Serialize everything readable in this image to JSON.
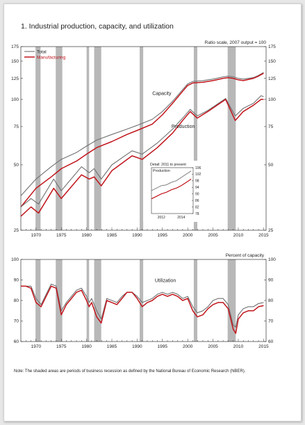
{
  "figure": {
    "title": "1.  Industrial production, capacity, and utilization",
    "note": "Note: The shaded areas are periods of business recession as defined by the National Bureau of Economic Research (NBER)."
  },
  "colors": {
    "total": "#707070",
    "manufacturing": "#c0141b",
    "recession": "#b8b8b8",
    "axis": "#333333"
  },
  "chart_data": [
    {
      "type": "line",
      "name": "production-capacity",
      "scale": "log",
      "scale_label": "Ratio scale, 2007 output = 100",
      "ylim": [
        25,
        175
      ],
      "xlim": [
        1967,
        2015.5
      ],
      "yticks": [
        25,
        50,
        75,
        100,
        125,
        150,
        175
      ],
      "xticks": [
        1970,
        1975,
        1980,
        1985,
        1990,
        1995,
        2000,
        2005,
        2010,
        2015
      ],
      "legend": {
        "position": "top-left",
        "entries": [
          "Total",
          "Manufacturing"
        ]
      },
      "annotations": [
        "Capacity",
        "Production"
      ],
      "recessions": [
        [
          1969.9,
          1970.9
        ],
        [
          1973.9,
          1975.2
        ],
        [
          1980.0,
          1980.5
        ],
        [
          1981.5,
          1982.9
        ],
        [
          1990.5,
          1991.2
        ],
        [
          2001.2,
          2001.9
        ],
        [
          2007.9,
          2009.5
        ]
      ],
      "series": [
        {
          "name": "Total",
          "measure": "Capacity",
          "x": [
            1967,
            1970,
            1973,
            1975,
            1978,
            1980,
            1982,
            1985,
            1988,
            1990,
            1993,
            1995,
            1997,
            1999,
            2000,
            2001,
            2003,
            2005,
            2007,
            2008,
            2009,
            2010,
            2011,
            2013,
            2014,
            2015
          ],
          "values": [
            36,
            43,
            49,
            53,
            57,
            61,
            65,
            69,
            73,
            76,
            81,
            88,
            98,
            111,
            118,
            121,
            122,
            124,
            127,
            128,
            127,
            125,
            124,
            126,
            129,
            133
          ]
        },
        {
          "name": "Manufacturing",
          "measure": "Capacity",
          "x": [
            1967,
            1970,
            1973,
            1975,
            1978,
            1980,
            1982,
            1985,
            1988,
            1990,
            1993,
            1995,
            1997,
            1999,
            2000,
            2001,
            2003,
            2005,
            2007,
            2008,
            2009,
            2010,
            2011,
            2013,
            2014,
            2015
          ],
          "values": [
            32,
            39,
            44,
            48,
            52,
            56,
            60,
            64,
            69,
            72,
            77,
            85,
            96,
            109,
            116,
            119,
            120,
            122,
            125,
            126,
            125,
            123,
            122,
            125,
            128,
            132
          ]
        },
        {
          "name": "Total",
          "measure": "Production",
          "x": [
            1967,
            1969,
            1970.5,
            1973.5,
            1975,
            1979,
            1980.5,
            1981.5,
            1982.9,
            1985,
            1989,
            1991,
            1994,
            1997,
            1999,
            2000.5,
            2001.9,
            2004,
            2007.5,
            2009.4,
            2011,
            2013,
            2014.5,
            2015
          ],
          "values": [
            32,
            35,
            33,
            43,
            38,
            49,
            46,
            48,
            43,
            50,
            58,
            56,
            63,
            73,
            82,
            90,
            84,
            89,
            101,
            84,
            91,
            96,
            104,
            103
          ]
        },
        {
          "name": "Manufacturing",
          "measure": "Production",
          "x": [
            1967,
            1969,
            1970.5,
            1973.5,
            1975,
            1979,
            1980.5,
            1981.5,
            1982.9,
            1985,
            1989,
            1991,
            1994,
            1997,
            1999,
            2000.5,
            2001.9,
            2004,
            2007.5,
            2009.4,
            2011,
            2013,
            2014.5,
            2015
          ],
          "values": [
            29,
            32,
            30,
            39,
            35,
            45,
            43,
            44,
            40,
            47,
            55,
            53,
            60,
            70,
            80,
            88,
            82,
            88,
            100,
            80,
            88,
            94,
            100,
            100
          ]
        }
      ],
      "inset": {
        "title": "Detail: 2011 to present",
        "label": "Production",
        "xlim": [
          2011,
          2015.2
        ],
        "ylim": [
          78,
          106
        ],
        "yticks": [
          78,
          82,
          86,
          90,
          94,
          98,
          102,
          106
        ],
        "xticks": [
          2012,
          2014
        ],
        "series": [
          {
            "name": "Total",
            "x": [
              2011,
              2011.5,
              2012,
              2012.5,
              2013,
              2013.5,
              2014,
              2014.5,
              2015
            ],
            "values": [
              92,
              93.5,
              95,
              95.5,
              97,
              98,
              100,
              102,
              104
            ]
          },
          {
            "name": "Manufacturing",
            "x": [
              2011,
              2011.5,
              2012,
              2012.5,
              2013,
              2013.5,
              2014,
              2014.5,
              2015
            ],
            "values": [
              87,
              88.5,
              90,
              91,
              92.5,
              93.5,
              95,
              97,
              99
            ]
          }
        ]
      }
    },
    {
      "type": "line",
      "name": "utilization",
      "scale_label": "Percent of capacity",
      "annotations": [
        "Utilization"
      ],
      "ylim": [
        60,
        100
      ],
      "xlim": [
        1967,
        2015.5
      ],
      "yticks": [
        60,
        70,
        80,
        90,
        100
      ],
      "xticks": [
        1970,
        1975,
        1980,
        1985,
        1990,
        1995,
        2000,
        2005,
        2010,
        2015
      ],
      "series": [
        {
          "name": "Total",
          "x": [
            1967,
            1968,
            1969,
            1970,
            1971,
            1972,
            1973,
            1974,
            1975,
            1976,
            1977,
            1978,
            1979,
            1980,
            1980.5,
            1981,
            1982,
            1982.9,
            1984,
            1985,
            1986,
            1987,
            1988,
            1989,
            1990,
            1991,
            1992,
            1993,
            1994,
            1995,
            1996,
            1997,
            1998,
            1999,
            2000,
            2001,
            2001.9,
            2003,
            2004,
            2005,
            2006,
            2007,
            2008,
            2009,
            2009.5,
            2010,
            2011,
            2012,
            2013,
            2014,
            2015
          ],
          "values": [
            87,
            87,
            87,
            81,
            78,
            83,
            88,
            87,
            75,
            79,
            82,
            85,
            86,
            82,
            79,
            81,
            75,
            71,
            81,
            80,
            79,
            82,
            84,
            84,
            82,
            79,
            80,
            81,
            83,
            84,
            83,
            84,
            83,
            81,
            82,
            77,
            74,
            75,
            77,
            80,
            81,
            81,
            78,
            68,
            67,
            73,
            76,
            77,
            77,
            78.5,
            79
          ]
        },
        {
          "name": "Manufacturing",
          "x": [
            1967,
            1968,
            1969,
            1970,
            1971,
            1972,
            1973,
            1974,
            1975,
            1976,
            1977,
            1978,
            1979,
            1980,
            1980.5,
            1981,
            1982,
            1982.9,
            1984,
            1985,
            1986,
            1987,
            1988,
            1989,
            1990,
            1991,
            1992,
            1993,
            1994,
            1995,
            1996,
            1997,
            1998,
            1999,
            2000,
            2001,
            2001.9,
            2003,
            2004,
            2005,
            2006,
            2007,
            2008,
            2009,
            2009.5,
            2010,
            2011,
            2012,
            2013,
            2014,
            2015
          ],
          "values": [
            87,
            87,
            86,
            79,
            77,
            82,
            87,
            86,
            73,
            78,
            81,
            84,
            85,
            80,
            77,
            79,
            72,
            69,
            80,
            79,
            78,
            81,
            84,
            84,
            81,
            77,
            79,
            80,
            82,
            83,
            82,
            83,
            82,
            80,
            81,
            75,
            72,
            73,
            76,
            78,
            79,
            79,
            76,
            66,
            64,
            71,
            74,
            75,
            75,
            77,
            77.5
          ]
        }
      ]
    }
  ]
}
